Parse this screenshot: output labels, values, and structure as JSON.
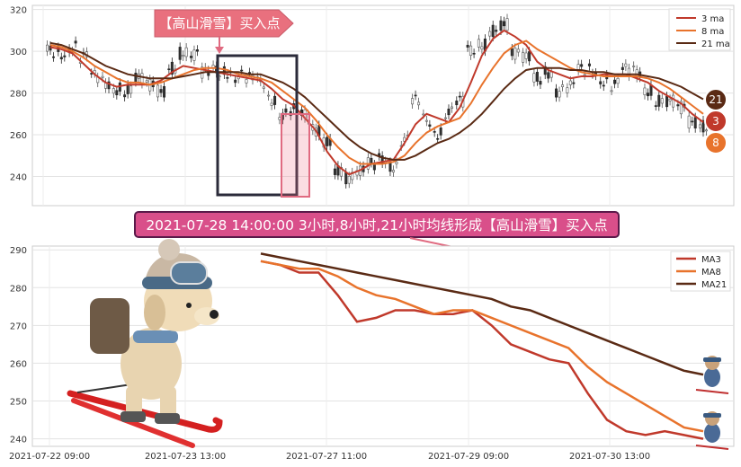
{
  "chart_data": [
    {
      "type": "line",
      "panel": "top",
      "ylim": [
        226,
        322
      ],
      "yticks": [
        240,
        260,
        280,
        300,
        320
      ],
      "x_count": 60,
      "candles": [
        300,
        299,
        302,
        297,
        288,
        285,
        282,
        281,
        287,
        284,
        281,
        292,
        299,
        298,
        290,
        291,
        290,
        288,
        287,
        285,
        277,
        270,
        272,
        269,
        262,
        257,
        243,
        239,
        242,
        246,
        249,
        245,
        257,
        276,
        267,
        261,
        271,
        276,
        300,
        303,
        310,
        313,
        299,
        297,
        287,
        290,
        281,
        283,
        291,
        291,
        286,
        284,
        291,
        290,
        281,
        276,
        276,
        273,
        266,
        264
      ],
      "series": [
        {
          "name": "3 ma",
          "color": "#c0392b",
          "values": [
            302,
            301,
            299,
            294,
            289,
            285,
            283,
            284,
            284,
            284,
            286,
            290,
            293,
            292,
            291,
            290,
            289,
            288,
            287,
            286,
            282,
            277,
            274,
            268,
            262,
            252,
            245,
            241,
            243,
            246,
            247,
            248,
            256,
            265,
            270,
            268,
            266,
            273,
            285,
            298,
            306,
            310,
            307,
            303,
            295,
            291,
            289,
            287,
            288,
            288,
            289,
            289,
            289,
            287,
            285,
            281,
            278,
            275,
            270,
            266
          ]
        },
        {
          "name": "8 ma",
          "color": "#e8732c",
          "values": [
            303,
            302,
            300,
            297,
            293,
            290,
            287,
            285,
            285,
            284,
            285,
            287,
            289,
            291,
            292,
            292,
            291,
            289,
            288,
            287,
            285,
            281,
            277,
            273,
            267,
            260,
            254,
            249,
            246,
            246,
            246,
            247,
            250,
            256,
            261,
            264,
            266,
            268,
            275,
            284,
            292,
            299,
            303,
            305,
            301,
            298,
            295,
            292,
            290,
            289,
            288,
            288,
            288,
            288,
            287,
            285,
            282,
            278,
            274,
            270
          ]
        },
        {
          "name": "21 ma",
          "color": "#5a2a14",
          "values": [
            304,
            303,
            301,
            299,
            296,
            293,
            291,
            289,
            288,
            287,
            287,
            287,
            288,
            289,
            290,
            290,
            290,
            290,
            289,
            289,
            287,
            285,
            282,
            278,
            273,
            268,
            263,
            258,
            254,
            251,
            249,
            248,
            248,
            250,
            253,
            256,
            258,
            261,
            265,
            270,
            276,
            282,
            287,
            291,
            292,
            292,
            292,
            291,
            291,
            290,
            290,
            289,
            289,
            289,
            288,
            287,
            285,
            283,
            280,
            277
          ]
        }
      ],
      "annotation_top": "【高山滑雪】买入点",
      "badges": [
        "21",
        "3",
        "8"
      ]
    },
    {
      "type": "line",
      "panel": "bottom",
      "ylim": [
        238,
        291
      ],
      "yticks": [
        240,
        250,
        260,
        270,
        280,
        290
      ],
      "x_ticks": [
        "2021-07-22 09:00",
        "2021-07-23 13:00",
        "2021-07-27 11:00",
        "2021-07-29 09:00",
        "2021-07-30 13:00"
      ],
      "series": [
        {
          "name": "MA3",
          "color": "#c0392b",
          "values": [
            287,
            286,
            284,
            284,
            278,
            271,
            272,
            274,
            274,
            273,
            273,
            274,
            270,
            265,
            263,
            261,
            260,
            252,
            245,
            242,
            241,
            242,
            241,
            240
          ]
        },
        {
          "name": "MA8",
          "color": "#e8732c",
          "values": [
            287,
            286,
            285,
            285,
            283,
            280,
            278,
            277,
            275,
            273,
            274,
            274,
            272,
            270,
            268,
            266,
            264,
            259,
            255,
            252,
            249,
            246,
            243,
            242
          ]
        },
        {
          "name": "MA21",
          "color": "#5a2a14",
          "values": [
            289,
            288,
            287,
            286,
            285,
            284,
            283,
            282,
            281,
            280,
            279,
            278,
            277,
            275,
            274,
            272,
            270,
            268,
            266,
            264,
            262,
            260,
            258,
            257
          ]
        }
      ],
      "annotation": "2021-07-28 14:00:00 3小时,8小时,21小时均线形成【高山滑雪】买入点"
    }
  ]
}
